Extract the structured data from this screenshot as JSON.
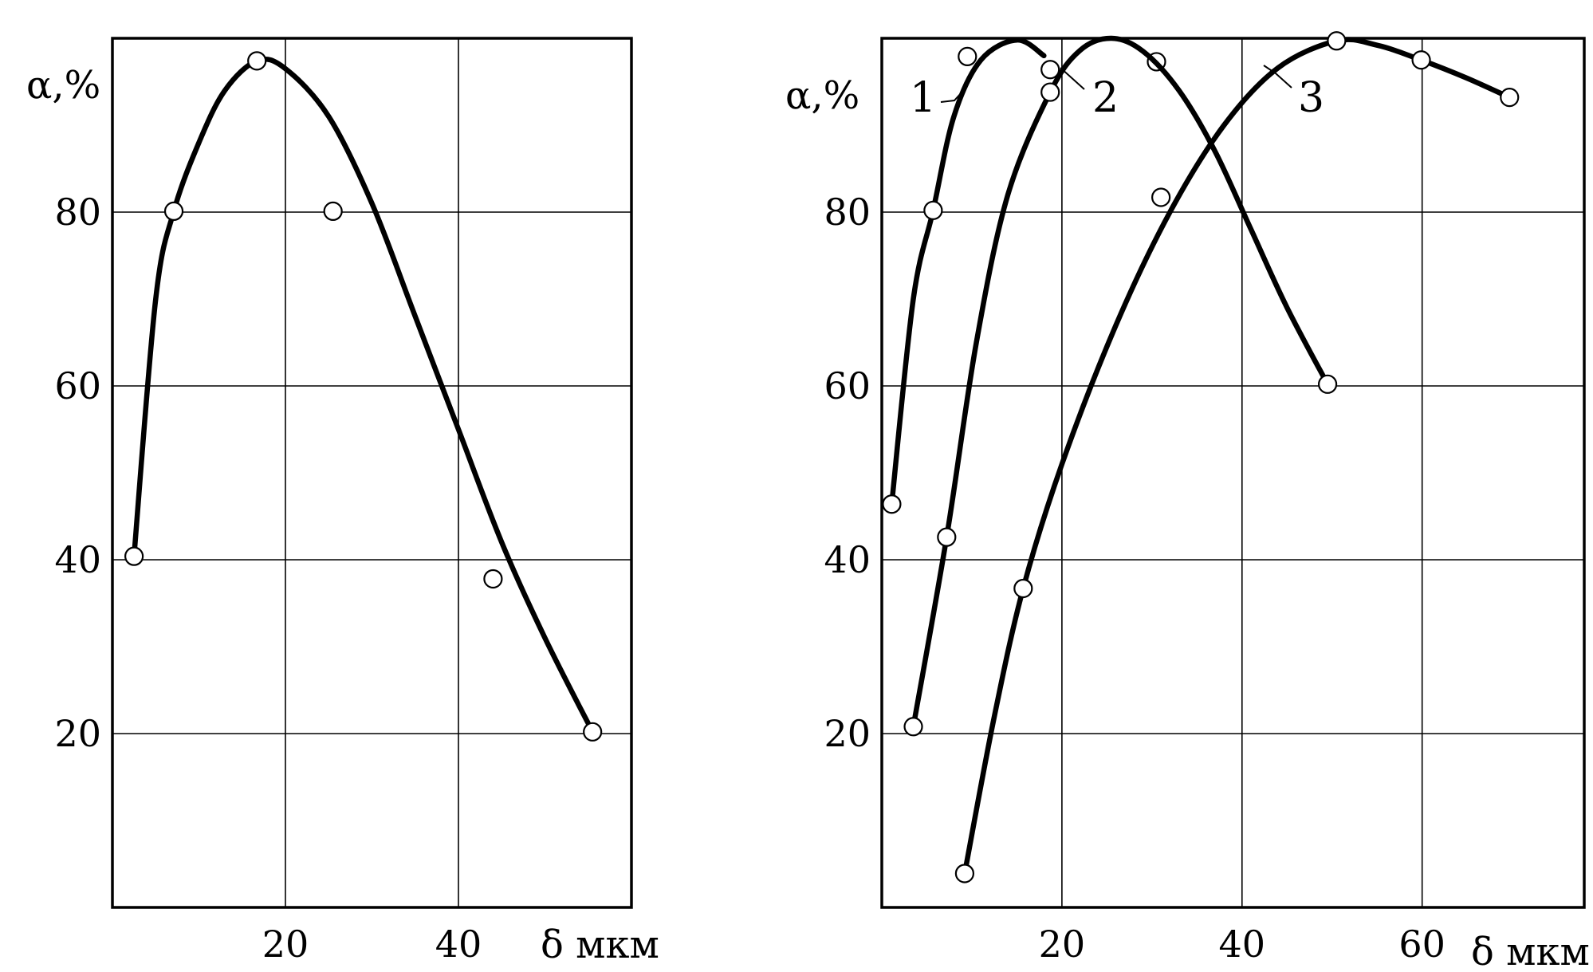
{
  "chart_data": [
    {
      "type": "line",
      "panel": "left",
      "xlabel": "δ мкм",
      "ylabel": "α,%",
      "xlim": [
        0,
        60
      ],
      "ylim": [
        0,
        100
      ],
      "x_ticks": [
        20,
        40
      ],
      "y_ticks": [
        20,
        40,
        60,
        80
      ],
      "grid": true,
      "points": [
        {
          "x": 2.5,
          "y": 40.4
        },
        {
          "x": 7.1,
          "y": 80.1
        },
        {
          "x": 16.7,
          "y": 97.4
        },
        {
          "x": 25.5,
          "y": 80.1
        },
        {
          "x": 44.0,
          "y": 37.8
        },
        {
          "x": 55.5,
          "y": 20.2
        }
      ],
      "curve": [
        {
          "x": 2.5,
          "y": 40.4
        },
        {
          "x": 5.0,
          "y": 70.0
        },
        {
          "x": 7.1,
          "y": 80.1
        },
        {
          "x": 10.0,
          "y": 88.0
        },
        {
          "x": 13.0,
          "y": 94.0
        },
        {
          "x": 16.7,
          "y": 97.4
        },
        {
          "x": 20.0,
          "y": 96.5
        },
        {
          "x": 25.0,
          "y": 91.0
        },
        {
          "x": 30.0,
          "y": 81.0
        },
        {
          "x": 35.0,
          "y": 68.0
        },
        {
          "x": 40.0,
          "y": 55.0
        },
        {
          "x": 45.0,
          "y": 42.0
        },
        {
          "x": 50.0,
          "y": 31.0
        },
        {
          "x": 55.5,
          "y": 20.2
        }
      ]
    },
    {
      "type": "line",
      "panel": "right",
      "xlabel": "δ мкм",
      "ylabel": "α,%",
      "xlim": [
        0,
        78
      ],
      "ylim": [
        0,
        100
      ],
      "x_ticks": [
        20,
        40,
        60
      ],
      "y_ticks": [
        20,
        40,
        60,
        80
      ],
      "grid": true,
      "series": [
        {
          "name": "1",
          "points": [
            {
              "x": 1.1,
              "y": 46.4
            },
            {
              "x": 5.7,
              "y": 80.2
            },
            {
              "x": 9.5,
              "y": 97.9
            },
            {
              "x": 18.7,
              "y": 96.4
            },
            {
              "x": 30.5,
              "y": 97.3
            },
            {
              "x": 31.0,
              "y": 81.7
            }
          ],
          "curve": [
            {
              "x": 1.1,
              "y": 46.4
            },
            {
              "x": 3.5,
              "y": 70.0
            },
            {
              "x": 5.7,
              "y": 80.2
            },
            {
              "x": 8.0,
              "y": 91.0
            },
            {
              "x": 11.0,
              "y": 97.5
            },
            {
              "x": 15.0,
              "y": 99.8
            },
            {
              "x": 18.0,
              "y": 98.0
            }
          ]
        },
        {
          "name": "2",
          "points": [
            {
              "x": 3.5,
              "y": 20.8
            },
            {
              "x": 7.2,
              "y": 42.6
            },
            {
              "x": 18.7,
              "y": 93.8
            },
            {
              "x": 49.5,
              "y": 60.2
            }
          ],
          "curve": [
            {
              "x": 3.5,
              "y": 20.8
            },
            {
              "x": 7.2,
              "y": 42.6
            },
            {
              "x": 10.5,
              "y": 65.0
            },
            {
              "x": 14.0,
              "y": 82.0
            },
            {
              "x": 18.7,
              "y": 93.8
            },
            {
              "x": 22.0,
              "y": 98.6
            },
            {
              "x": 25.5,
              "y": 100.0
            },
            {
              "x": 29.0,
              "y": 98.5
            },
            {
              "x": 33.0,
              "y": 94.0
            },
            {
              "x": 37.0,
              "y": 87.0
            },
            {
              "x": 41.0,
              "y": 78.0
            },
            {
              "x": 45.0,
              "y": 69.0
            },
            {
              "x": 49.5,
              "y": 60.2
            }
          ]
        },
        {
          "name": "3",
          "points": [
            {
              "x": 9.2,
              "y": 3.9
            },
            {
              "x": 15.7,
              "y": 36.7
            },
            {
              "x": 50.5,
              "y": 99.7
            },
            {
              "x": 59.9,
              "y": 97.5
            },
            {
              "x": 69.7,
              "y": 93.2
            }
          ],
          "curve": [
            {
              "x": 9.2,
              "y": 3.9
            },
            {
              "x": 12.5,
              "y": 22.0
            },
            {
              "x": 15.7,
              "y": 36.7
            },
            {
              "x": 20.0,
              "y": 51.0
            },
            {
              "x": 26.0,
              "y": 67.0
            },
            {
              "x": 32.0,
              "y": 80.0
            },
            {
              "x": 38.0,
              "y": 90.0
            },
            {
              "x": 44.0,
              "y": 96.6
            },
            {
              "x": 50.5,
              "y": 99.7
            },
            {
              "x": 55.0,
              "y": 99.2
            },
            {
              "x": 59.9,
              "y": 97.5
            },
            {
              "x": 65.0,
              "y": 95.4
            },
            {
              "x": 69.7,
              "y": 93.2
            }
          ]
        }
      ]
    }
  ]
}
